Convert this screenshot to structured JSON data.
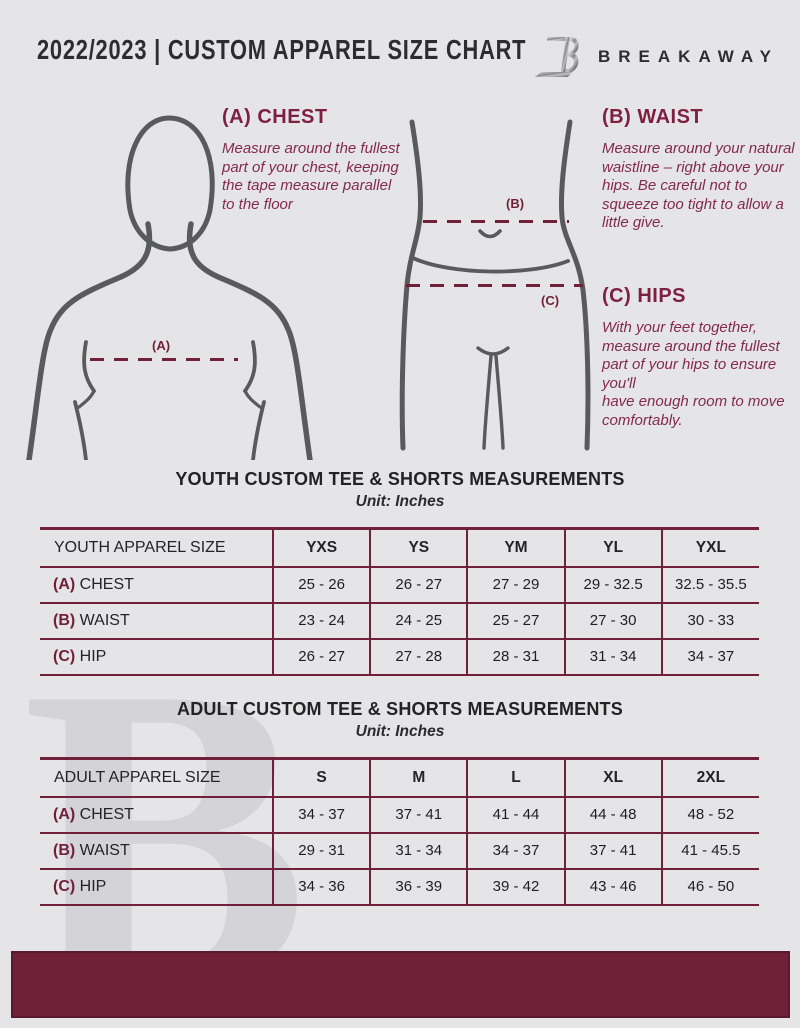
{
  "colors": {
    "background": "#e5e5e7",
    "accent_maroon": "#71203a",
    "heading_maroon": "#7e1f40",
    "dark_text": "#2d2d2f",
    "figure_gray": "#595a5c"
  },
  "header": {
    "title": "2022/2023  |  CUSTOM APPAREL SIZE CHART",
    "brand": "BREAKAWAY",
    "logo_icon": "breakaway-b-monogram"
  },
  "guide": {
    "chest": {
      "marker": "(A)",
      "heading": "(A) CHEST",
      "body": "Measure around the fullest part of your chest, keeping the tape measure parallel to the floor"
    },
    "waist": {
      "marker": "(B)",
      "heading": "(B) WAIST",
      "body": "Measure around your natural waistline – right above your hips. Be careful not to squeeze too tight to allow a little give."
    },
    "hips": {
      "marker": "(C)",
      "heading": "(C) HIPS",
      "body": "With your feet together, measure around the fullest part of your hips to ensure you'll\nhave enough room to move comfortably."
    }
  },
  "youth_table": {
    "title": "YOUTH CUSTOM TEE & SHORTS MEASUREMENTS",
    "subtitle": "Unit: Inches",
    "header": [
      "YOUTH APPAREL SIZE",
      "YXS",
      "YS",
      "YM",
      "YL",
      "YXL"
    ],
    "rows": [
      {
        "prefix": "(A)",
        "label": "CHEST",
        "values": [
          "25 - 26",
          "26 - 27",
          "27 - 29",
          "29 - 32.5",
          "32.5 - 35.5"
        ]
      },
      {
        "prefix": "(B)",
        "label": "WAIST",
        "values": [
          "23 - 24",
          "24 - 25",
          "25 - 27",
          "27 - 30",
          "30 - 33"
        ]
      },
      {
        "prefix": "(C)",
        "label": "HIP",
        "values": [
          "26 - 27",
          "27 - 28",
          "28 - 31",
          "31 - 34",
          "34 - 37"
        ]
      }
    ]
  },
  "adult_table": {
    "title": "ADULT CUSTOM TEE & SHORTS MEASUREMENTS",
    "subtitle": "Unit: Inches",
    "header": [
      "ADULT APPAREL SIZE",
      "S",
      "M",
      "L",
      "XL",
      "2XL"
    ],
    "rows": [
      {
        "prefix": "(A)",
        "label": "CHEST",
        "values": [
          "34 - 37",
          "37 - 41",
          "41 - 44",
          "44 - 48",
          "48 - 52"
        ]
      },
      {
        "prefix": "(B)",
        "label": "WAIST",
        "values": [
          "29 - 31",
          "31 - 34",
          "34 - 37",
          "37 - 41",
          "41 - 45.5"
        ]
      },
      {
        "prefix": "(C)",
        "label": "HIP",
        "values": [
          "34 - 36",
          "36 - 39",
          "39 - 42",
          "43 - 46",
          "46 - 50"
        ]
      }
    ]
  },
  "watermark": {
    "letter": "B"
  }
}
